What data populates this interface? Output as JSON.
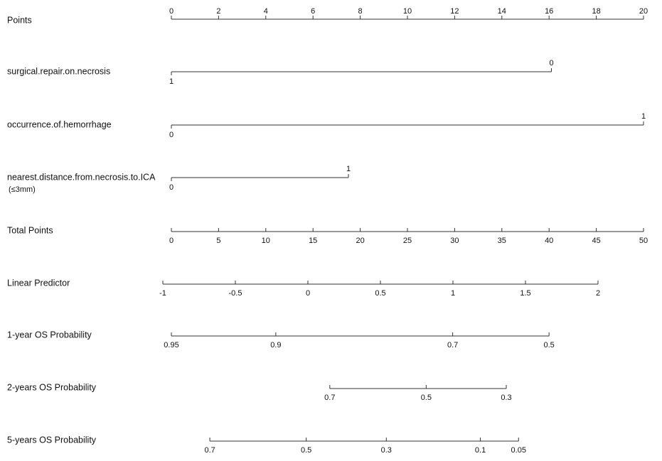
{
  "chart_data": {
    "type": "nomogram",
    "points_axis": {
      "name": "Points",
      "lim": [
        0,
        20
      ],
      "ticks": [
        0,
        2,
        4,
        6,
        8,
        10,
        12,
        14,
        16,
        18,
        20
      ]
    },
    "variables": [
      {
        "name": "surgical.repair.on.necrosis",
        "levels": [
          "0",
          "1"
        ],
        "points": [
          16.1,
          0
        ]
      },
      {
        "name": "occurrence.of.hemorrhage",
        "levels": [
          "0",
          "1"
        ],
        "points": [
          0,
          20
        ]
      },
      {
        "name": "nearest.distance.from.necrosis.to.ICA",
        "subname": "(≤3mm)",
        "levels": [
          "0",
          "1"
        ],
        "points": [
          0,
          7.5
        ]
      }
    ],
    "total_points_axis": {
      "name": "Total Points",
      "lim": [
        0,
        50
      ],
      "ticks": [
        0,
        5,
        10,
        15,
        20,
        25,
        30,
        35,
        40,
        45,
        50
      ]
    },
    "linear_predictor_axis": {
      "name": "Linear Predictor",
      "lim": [
        -1,
        2
      ],
      "ticks": [
        -1,
        -0.5,
        0,
        0.5,
        1,
        1.5,
        2
      ]
    },
    "probability_axes": [
      {
        "name": "1-year OS Probability",
        "ticks": [
          0.95,
          0.9,
          0.7,
          0.5
        ]
      },
      {
        "name": "2-years OS Probability",
        "ticks": [
          0.7,
          0.5,
          0.3
        ]
      },
      {
        "name": "5-years OS Probability",
        "ticks": [
          0.7,
          0.5,
          0.3,
          0.1,
          0.05
        ]
      }
    ]
  }
}
